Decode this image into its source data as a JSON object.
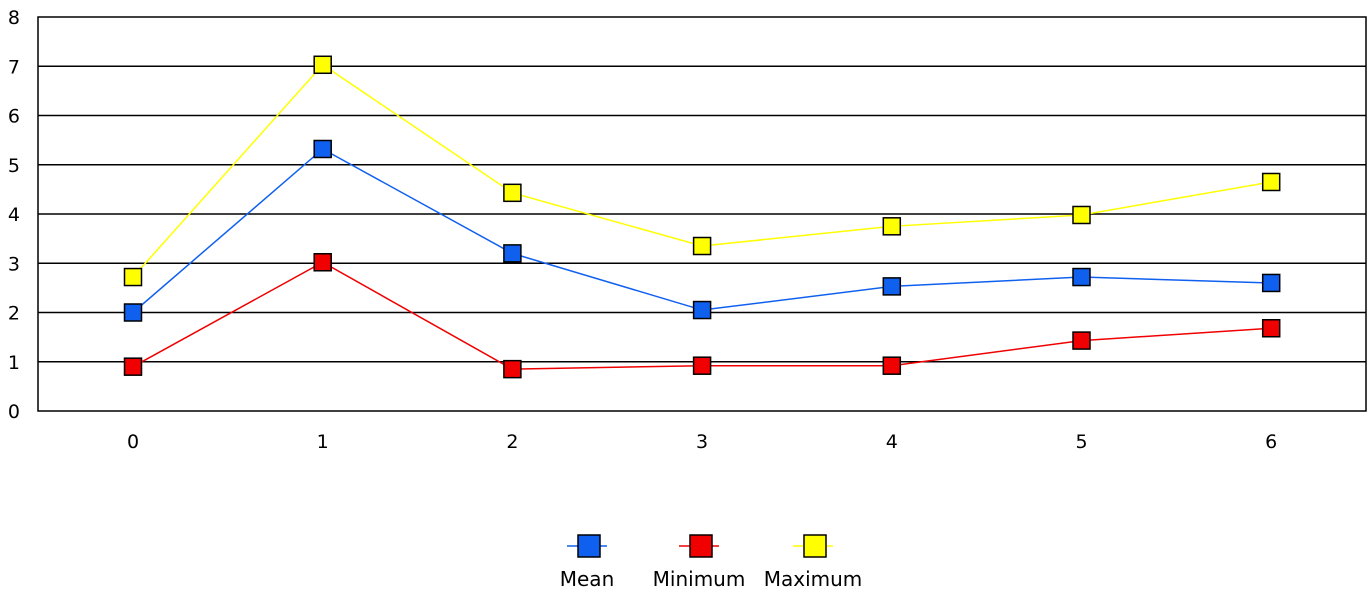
{
  "chart_data": {
    "type": "line",
    "title": "",
    "xlabel": "",
    "ylabel": "",
    "x": [
      0,
      1,
      2,
      3,
      4,
      5,
      6
    ],
    "xticks": [
      "0",
      "1",
      "2",
      "3",
      "4",
      "5",
      "6"
    ],
    "ylim": [
      0,
      8
    ],
    "yticks": [
      "0",
      "1",
      "2",
      "3",
      "4",
      "5",
      "6",
      "7",
      "8"
    ],
    "grid": "horizontal",
    "marker": "square",
    "legend_position": "bottom-center",
    "series": [
      {
        "name": "Mean",
        "color": "#1060f0",
        "values": [
          2.0,
          5.32,
          3.2,
          2.05,
          2.53,
          2.72,
          2.6
        ]
      },
      {
        "name": "Minimum",
        "color": "#f00000",
        "values": [
          0.9,
          3.02,
          0.85,
          0.92,
          0.92,
          1.43,
          1.68
        ]
      },
      {
        "name": "Maximum",
        "color": "#ffff00",
        "values": [
          2.72,
          7.03,
          4.43,
          3.35,
          3.75,
          3.98,
          4.65
        ]
      }
    ]
  }
}
